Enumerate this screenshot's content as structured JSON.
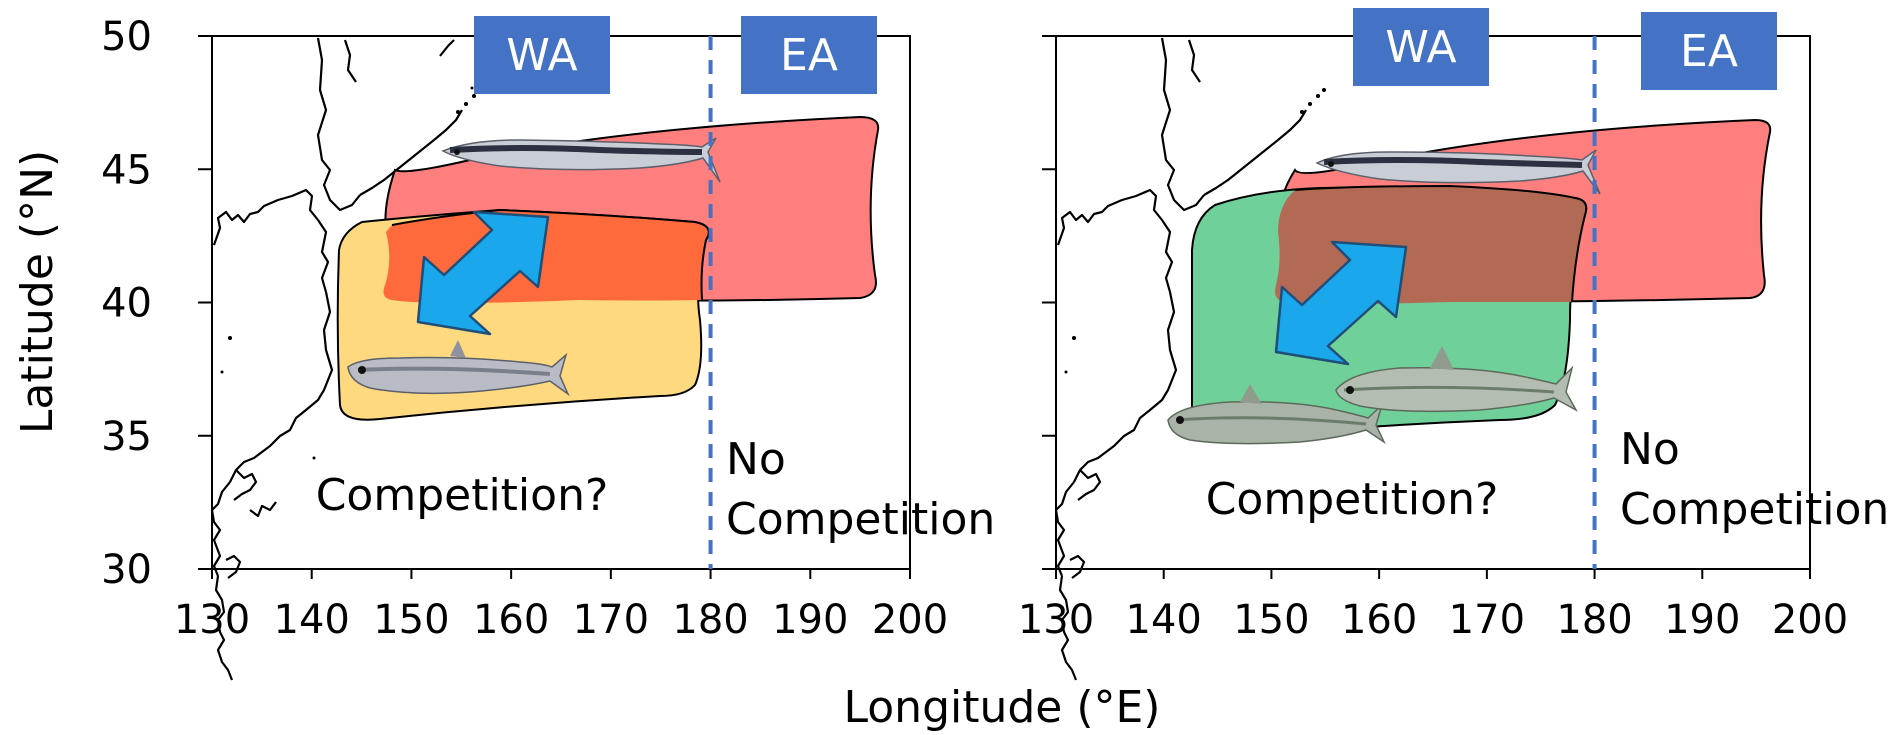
{
  "colors": {
    "saury_range": "#ff7f7f",
    "anchovy_range": "#ffd980",
    "overlap_anchovy": "#ff6a3c",
    "sardine_range": "#6fd09a",
    "overlap_sardine": "#b26a55",
    "region_box": "#4472c4",
    "boundary_line": "#4472c4",
    "arrow_fill": "#1aa7ec",
    "arrow_stroke": "#1f4e79"
  },
  "icons": [
    "pacific-saury-image",
    "japanese-anchovy-image",
    "sardine-image",
    "double-headed-arrow-icon"
  ],
  "y_axis_label": "Latitude (°N)",
  "x_axis_label": "Longitude (°E)",
  "chart_data": [
    {
      "type": "map",
      "xlim": [
        130,
        200
      ],
      "ylim": [
        30,
        50
      ],
      "x_ticks": [
        130,
        140,
        150,
        160,
        170,
        180,
        190,
        200
      ],
      "y_ticks": [
        30,
        35,
        40,
        45,
        50
      ],
      "boundary_longitude": 180,
      "region_labels": [
        "WA",
        "EA"
      ],
      "annotations": [
        "Competition?",
        "No",
        "Competition"
      ],
      "species": [
        "Pacific saury",
        "Japanese anchovy"
      ],
      "areas": [
        {
          "species": "Pacific saury",
          "lon_range": [
            148,
            196
          ],
          "lat_range": [
            40,
            47
          ]
        },
        {
          "species": "Japanese anchovy",
          "lon_range": [
            143,
            180
          ],
          "lat_range": [
            35.5,
            43
          ]
        }
      ]
    },
    {
      "type": "map",
      "xlim": [
        130,
        200
      ],
      "ylim": [
        30,
        50
      ],
      "x_ticks": [
        130,
        140,
        150,
        160,
        170,
        180,
        190,
        200
      ],
      "y_ticks": [
        30,
        35,
        40,
        45,
        50
      ],
      "boundary_longitude": 180,
      "region_labels": [
        "WA",
        "EA"
      ],
      "annotations": [
        "Competition?",
        "No",
        "Competition"
      ],
      "species": [
        "Pacific saury",
        "Sardine"
      ],
      "areas": [
        {
          "species": "Pacific saury",
          "lon_range": [
            150,
            196
          ],
          "lat_range": [
            40,
            47
          ]
        },
        {
          "species": "Sardine",
          "lon_range": [
            142,
            177
          ],
          "lat_range": [
            35,
            43.5
          ]
        }
      ]
    }
  ]
}
